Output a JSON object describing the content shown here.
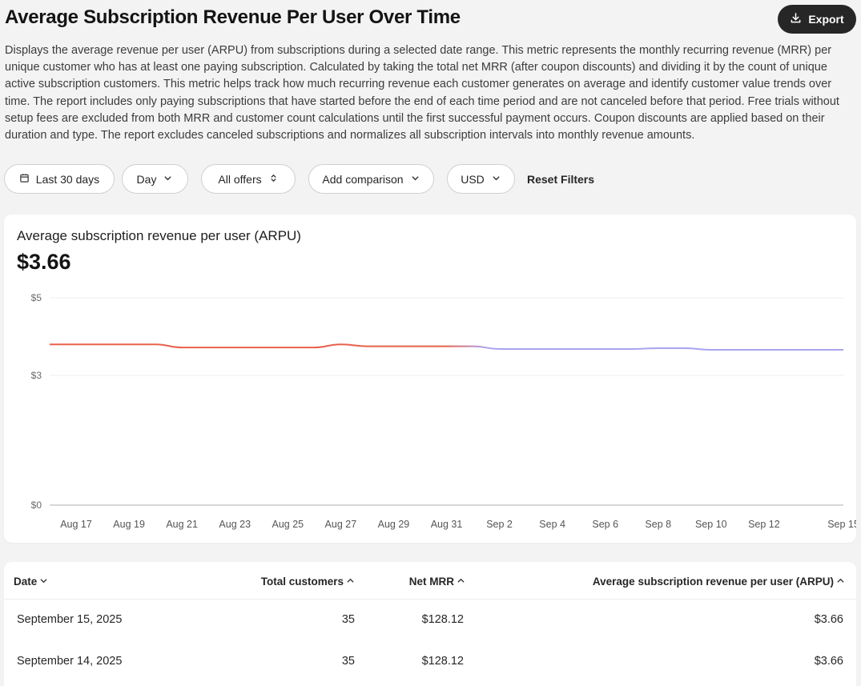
{
  "header": {
    "title": "Average Subscription Revenue Per User Over Time",
    "export_label": "Export",
    "description": "Displays the average revenue per user (ARPU) from subscriptions during a selected date range. This metric represents the monthly recurring revenue (MRR) per unique customer who has at least one paying subscription. Calculated by taking the total net MRR (after coupon discounts) and dividing it by the count of unique active subscription customers. This metric helps track how much recurring revenue each customer generates on average and identify customer value trends over time. The report includes only paying subscriptions that have started before the end of each time period and are not canceled before that period. Free trials without setup fees are excluded from both MRR and customer count calculations until the first successful payment occurs. Coupon discounts are applied based on their duration and type. The report excludes canceled subscriptions and normalizes all subscription intervals into monthly revenue amounts."
  },
  "filters": {
    "date_range": "Last 30 days",
    "granularity": "Day",
    "offers": "All offers",
    "comparison": "Add comparison",
    "currency": "USD",
    "reset": "Reset Filters"
  },
  "chart_card": {
    "title": "Average subscription revenue per user (ARPU)",
    "value": "$3.66"
  },
  "chart_data": {
    "type": "line",
    "title": "Average subscription revenue per user (ARPU)",
    "xlabel": "",
    "ylabel": "",
    "y_tick_labels": [
      "$5",
      "$3",
      "$0"
    ],
    "y_tick_values": [
      5,
      3,
      0
    ],
    "ylim": [
      0,
      5
    ],
    "grid": true,
    "x_tick_labels": [
      "Aug 17",
      "Aug 19",
      "Aug 21",
      "Aug 23",
      "Aug 25",
      "Aug 27",
      "Aug 29",
      "Aug 31",
      "Sep 2",
      "Sep 4",
      "Sep 6",
      "Sep 8",
      "Sep 10",
      "Sep 12",
      "Sep 15"
    ],
    "x": [
      "Aug 16",
      "Aug 17",
      "Aug 18",
      "Aug 19",
      "Aug 20",
      "Aug 21",
      "Aug 22",
      "Aug 23",
      "Aug 24",
      "Aug 25",
      "Aug 26",
      "Aug 27",
      "Aug 28",
      "Aug 29",
      "Aug 30",
      "Aug 31",
      "Sep 1",
      "Sep 2",
      "Sep 3",
      "Sep 4",
      "Sep 5",
      "Sep 6",
      "Sep 7",
      "Sep 8",
      "Sep 9",
      "Sep 10",
      "Sep 11",
      "Sep 12",
      "Sep 13",
      "Sep 14",
      "Sep 15"
    ],
    "values": [
      3.8,
      3.8,
      3.8,
      3.8,
      3.8,
      3.72,
      3.72,
      3.72,
      3.72,
      3.72,
      3.72,
      3.8,
      3.75,
      3.75,
      3.75,
      3.75,
      3.75,
      3.68,
      3.68,
      3.68,
      3.68,
      3.68,
      3.68,
      3.7,
      3.7,
      3.66,
      3.66,
      3.66,
      3.66,
      3.66,
      3.66
    ],
    "colors": {
      "line_start": "#e8604c",
      "line_end": "#a9a4f0",
      "grid": "#ececec",
      "axis": "#cccccc"
    }
  },
  "table": {
    "columns": [
      {
        "label": "Date",
        "sort": "desc"
      },
      {
        "label": "Total customers",
        "sort": "asc"
      },
      {
        "label": "Net MRR",
        "sort": "asc"
      },
      {
        "label": "Average subscription revenue per user (ARPU)",
        "sort": "asc"
      }
    ],
    "rows": [
      {
        "date": "September 15, 2025",
        "customers": "35",
        "mrr": "$128.12",
        "arpu": "$3.66"
      },
      {
        "date": "September 14, 2025",
        "customers": "35",
        "mrr": "$128.12",
        "arpu": "$3.66"
      }
    ]
  }
}
